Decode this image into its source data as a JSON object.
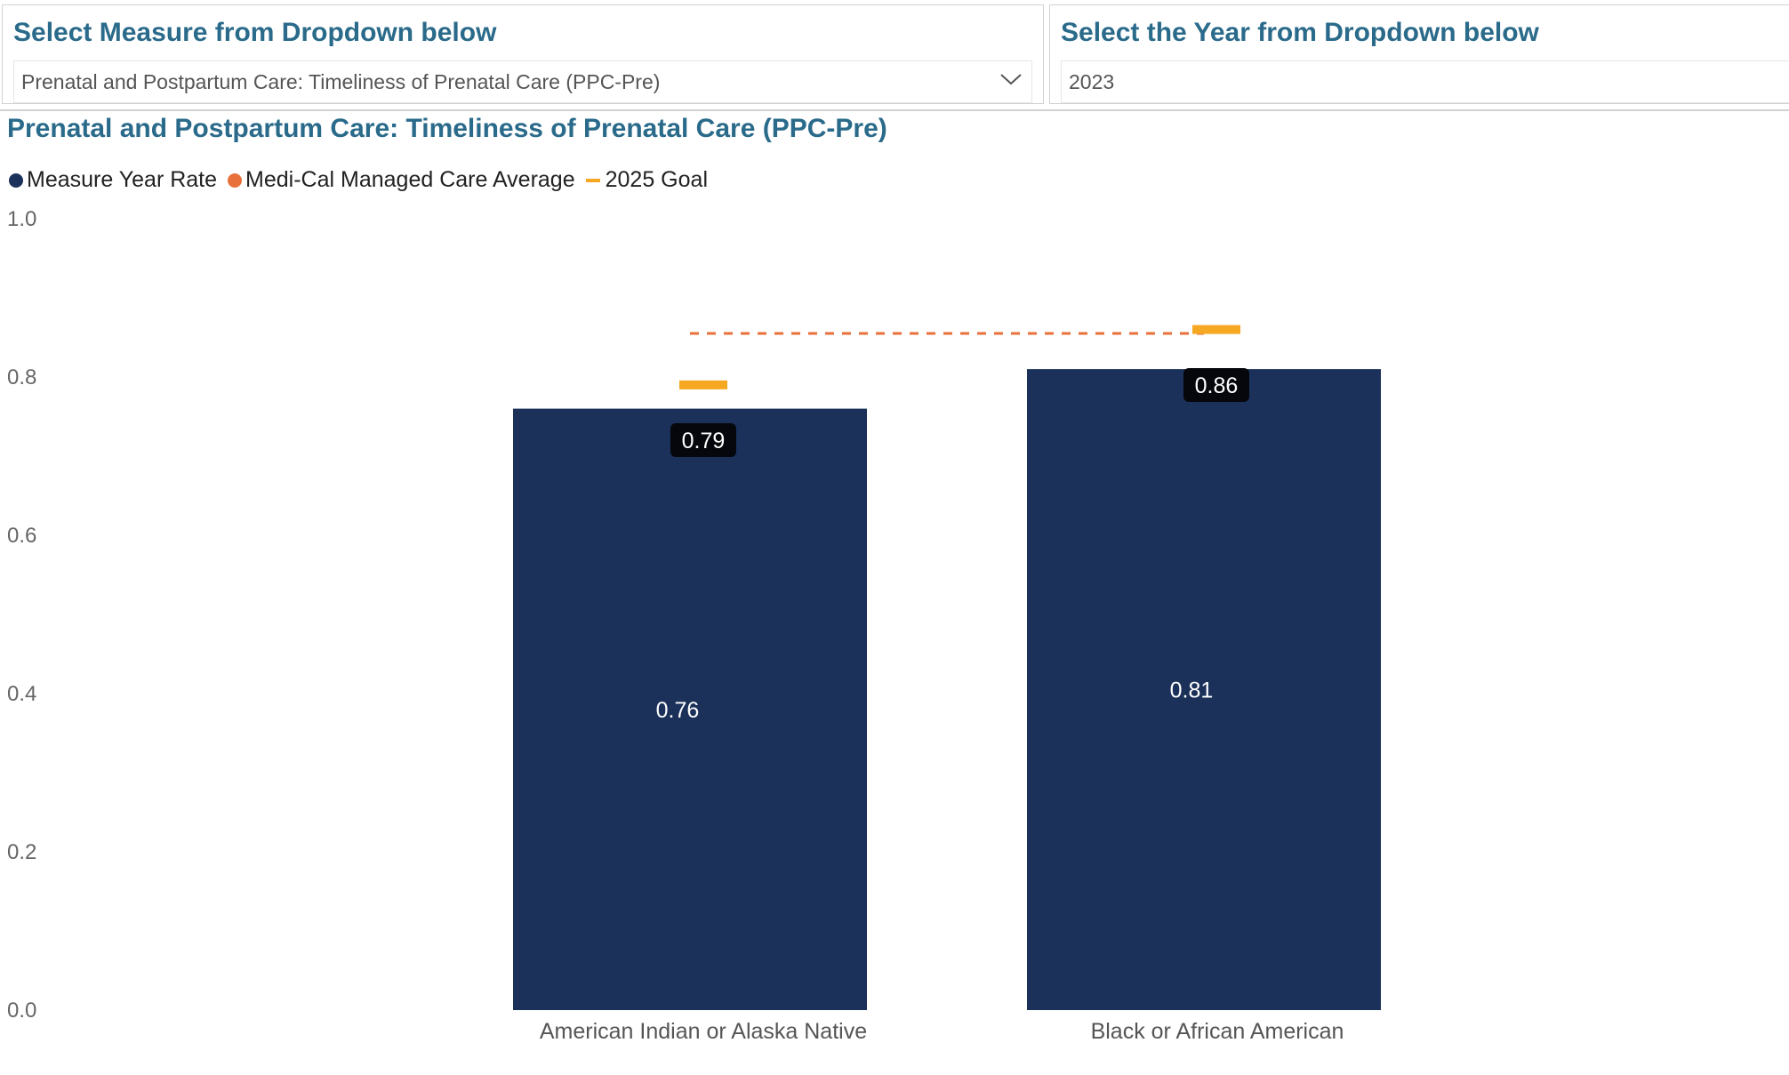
{
  "slicers": {
    "measure": {
      "title": "Select Measure from Dropdown below",
      "value": "Prenatal and Postpartum Care: Timeliness of Prenatal Care (PPC-Pre)",
      "icon": "chevron-down-icon"
    },
    "year": {
      "title": "Select the Year from Dropdown below",
      "value": "2023"
    }
  },
  "colors": {
    "bar": "#1b3159",
    "average": "#e8703a",
    "goal": "#f7a823",
    "title": "#2a6a8a",
    "tooltip_bg": "#05070c"
  },
  "chart_data": {
    "type": "bar",
    "title": "Prenatal and Postpartum Care: Timeliness of Prenatal Care (PPC-Pre)",
    "xlabel": "",
    "ylabel": "",
    "ylim": [
      0,
      1.0
    ],
    "yticks": [
      "0.0",
      "0.2",
      "0.4",
      "0.6",
      "0.8",
      "1.0"
    ],
    "grid": false,
    "legend_position": "top-left",
    "legend": [
      {
        "name": "Measure Year Rate",
        "marker": "dot",
        "color": "#1b3159"
      },
      {
        "name": "Medi-Cal Managed Care Average",
        "marker": "dot",
        "color": "#e8703a"
      },
      {
        "name": "2025 Goal",
        "marker": "dash",
        "color": "#f7a823"
      }
    ],
    "categories": [
      "American Indian or Alaska Native",
      "Black or African American"
    ],
    "series": [
      {
        "name": "Measure Year Rate",
        "type": "bar",
        "values": [
          0.76,
          0.81
        ],
        "labels": [
          "0.76",
          "0.81"
        ]
      },
      {
        "name": "2025 Goal",
        "type": "marker",
        "values": [
          0.79,
          0.86
        ],
        "labels": [
          "0.79",
          "0.86"
        ]
      },
      {
        "name": "Medi-Cal Managed Care Average",
        "type": "dashed-line",
        "values": [
          0.855,
          0.855
        ]
      }
    ]
  }
}
